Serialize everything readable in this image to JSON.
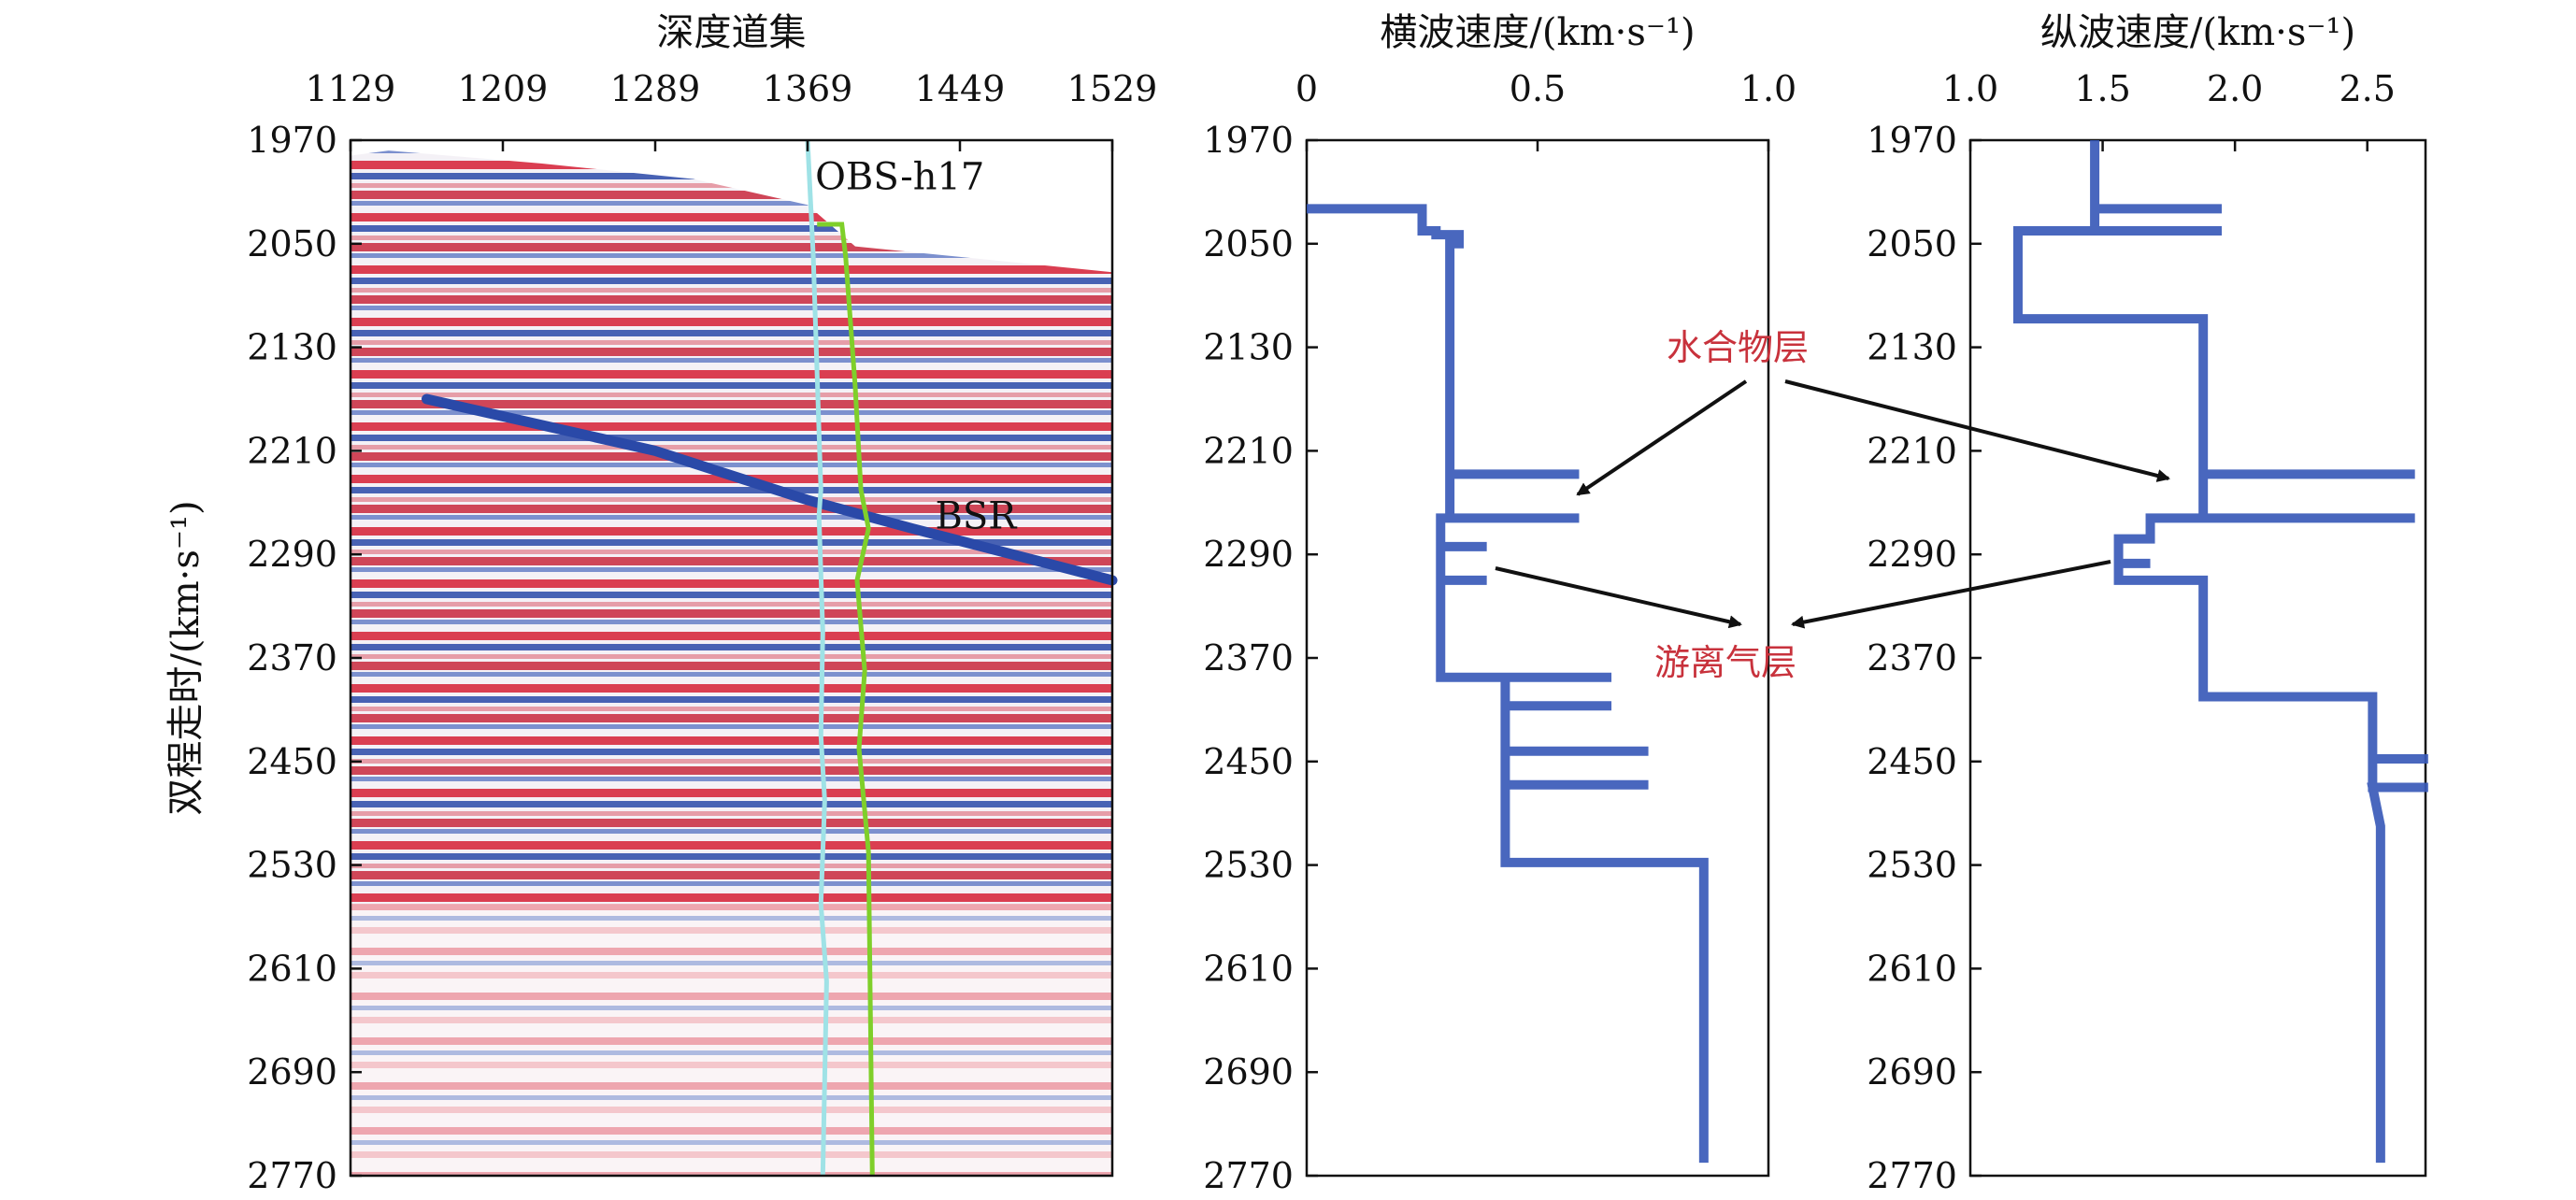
{
  "chart_data": [
    {
      "type": "seismic-section",
      "title": "深度道集",
      "ylabel": "双程走时/(km·s⁻¹)",
      "x_ticks": [
        "1129",
        "1209",
        "1289",
        "1369",
        "1449",
        "1529"
      ],
      "xlim": [
        1129,
        1529
      ],
      "y_ticks": [
        "1970",
        "2050",
        "2130",
        "2210",
        "2290",
        "2370",
        "2450",
        "2530",
        "2610",
        "2690",
        "2770"
      ],
      "ylim": [
        1970,
        2770
      ],
      "annotations": [
        {
          "label": "OBS-h17"
        },
        {
          "label": "BSR"
        }
      ],
      "colors": {
        "positive": "#d6253a",
        "negative": "#2a49a8",
        "obs_trace": "#9fe2e6",
        "velocity_trace": "#7fcf2a",
        "bsr": "#2a49a8"
      },
      "seafloor": {
        "x": [
          1129,
          1149,
          1229,
          1309,
          1369,
          1394,
          1529
        ],
        "y": [
          1982,
          1978,
          1988,
          2000,
          2020,
          2052,
          2072
        ]
      },
      "bsr_line": {
        "x": [
          1169,
          1289,
          1369,
          1424,
          1529
        ],
        "y": [
          2170,
          2210,
          2248,
          2270,
          2310
        ]
      },
      "obs_trace": {
        "x": [
          1369,
          1372,
          1374,
          1376,
          1375,
          1377,
          1376,
          1378,
          1376,
          1379,
          1377
        ],
        "y": [
          1970,
          2060,
          2150,
          2240,
          2260,
          2350,
          2430,
          2480,
          2560,
          2620,
          2770
        ]
      },
      "green_trace": {
        "x": [
          1374,
          1387,
          1389,
          1394,
          1397,
          1401,
          1395,
          1399,
          1396,
          1401,
          1403
        ],
        "y": [
          2035,
          2035,
          2060,
          2160,
          2240,
          2270,
          2310,
          2380,
          2440,
          2520,
          2770
        ]
      }
    },
    {
      "type": "line",
      "title": "横波速度/(km·s⁻¹)",
      "x_ticks": [
        "0",
        "0.5",
        "1.0"
      ],
      "xlim": [
        0,
        1.0
      ],
      "y_ticks": [
        "1970",
        "2050",
        "2130",
        "2210",
        "2290",
        "2370",
        "2450",
        "2530",
        "2610",
        "2690",
        "2770"
      ],
      "ylim": [
        1970,
        2770
      ],
      "line_color": "#3a5ab8",
      "x": [
        0,
        0.25,
        0.25,
        0.28,
        0.28,
        0.33,
        0.33,
        0.31,
        0.31,
        0.31,
        0.59,
        0.31,
        0.31,
        0.59,
        0.31,
        0.29,
        0.29,
        0.39,
        0.29,
        0.29,
        0.39,
        0.29,
        0.29,
        0.66,
        0.43,
        0.43,
        0.66,
        0.43,
        0.43,
        0.74,
        0.43,
        0.43,
        0.74,
        0.43,
        0.43,
        0.86,
        0.86
      ],
      "y": [
        2023,
        2023,
        2040,
        2040,
        2043,
        2043,
        2050,
        2050,
        2107,
        2228,
        2228,
        2228,
        2262,
        2262,
        2262,
        2262,
        2284,
        2284,
        2284,
        2310,
        2310,
        2310,
        2385,
        2385,
        2385,
        2407,
        2407,
        2407,
        2442,
        2442,
        2442,
        2468,
        2468,
        2468,
        2528,
        2528,
        2760
      ]
    },
    {
      "type": "line",
      "title": "纵波速度/(km·s⁻¹)",
      "x_ticks": [
        "1.0",
        "1.5",
        "2.0",
        "2.5"
      ],
      "xlim": [
        1.0,
        2.72
      ],
      "y_ticks": [
        "1970",
        "2050",
        "2130",
        "2210",
        "2290",
        "2370",
        "2450",
        "2530",
        "2610",
        "2690",
        "2770"
      ],
      "ylim": [
        1970,
        2770
      ],
      "line_color": "#3a5ab8",
      "x": [
        1.47,
        1.47,
        1.95,
        1.47,
        1.47,
        1.95,
        1.18,
        1.18,
        1.18,
        1.88,
        1.88,
        1.88,
        2.68,
        1.88,
        1.88,
        1.68,
        1.68,
        2.68,
        1.68,
        1.68,
        1.56,
        1.56,
        1.68,
        1.56,
        1.56,
        1.88,
        1.88,
        1.88,
        2.52,
        2.52,
        2.52,
        2.73,
        2.52,
        2.52,
        2.73,
        2.52,
        2.55,
        2.55
      ],
      "y": [
        1970,
        2023,
        2023,
        2023,
        2040,
        2040,
        2040,
        2040,
        2108,
        2108,
        2108,
        2228,
        2228,
        2228,
        2262,
        2262,
        2262,
        2262,
        2262,
        2278,
        2278,
        2297,
        2297,
        2297,
        2310,
        2310,
        2310,
        2400,
        2400,
        2400,
        2448,
        2448,
        2448,
        2470,
        2470,
        2470,
        2500,
        2760
      ]
    }
  ],
  "callouts": [
    {
      "label": "水合物层"
    },
    {
      "label": "游离气层"
    }
  ]
}
